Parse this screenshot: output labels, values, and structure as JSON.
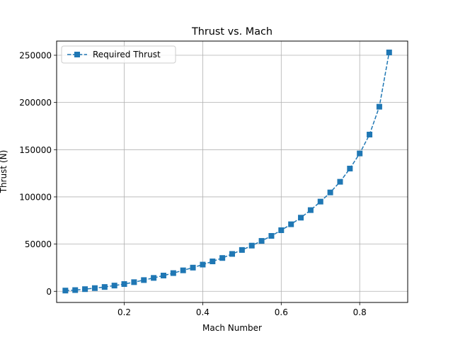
{
  "chart_data": {
    "type": "line",
    "title": "Thrust vs. Mach",
    "xlabel": "Mach Number",
    "ylabel": "Thrust (N)",
    "xlim": [
      0.0277,
      0.9223
    ],
    "ylim": [
      -11800,
      265000
    ],
    "xticks": [
      0.2,
      0.4,
      0.6,
      0.8
    ],
    "xtick_labels": [
      "0.2",
      "0.4",
      "0.6",
      "0.8"
    ],
    "yticks": [
      0,
      50000,
      100000,
      150000,
      200000,
      250000
    ],
    "ytick_labels": [
      "0",
      "50000",
      "100000",
      "150000",
      "200000",
      "250000"
    ],
    "grid": true,
    "legend_position": "upper left",
    "series": [
      {
        "name": "Required Thrust",
        "color": "#1f77b4",
        "line_style": "dashed",
        "marker": "square",
        "x": [
          0.05,
          0.075,
          0.1,
          0.125,
          0.15,
          0.175,
          0.2,
          0.225,
          0.25,
          0.275,
          0.3,
          0.325,
          0.35,
          0.375,
          0.4,
          0.425,
          0.45,
          0.475,
          0.5,
          0.525,
          0.55,
          0.575,
          0.6,
          0.625,
          0.65,
          0.675,
          0.7,
          0.725,
          0.75,
          0.775,
          0.8,
          0.825,
          0.85,
          0.875
        ],
        "y": [
          800,
          1300,
          2300,
          3400,
          4600,
          6100,
          7700,
          9700,
          11900,
          14200,
          16700,
          19300,
          22200,
          25100,
          28300,
          31700,
          35300,
          39600,
          43800,
          48400,
          53400,
          58700,
          64700,
          71000,
          78000,
          86000,
          95000,
          104700,
          116000,
          130000,
          146000,
          166000,
          195500,
          253000
        ]
      }
    ]
  }
}
